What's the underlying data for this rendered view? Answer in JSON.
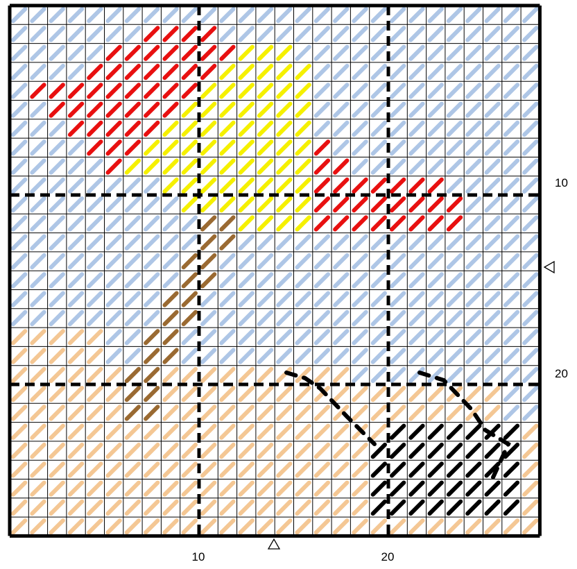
{
  "axis_labels": {
    "bottom": [
      "10",
      "20"
    ],
    "right": [
      "10",
      "20"
    ]
  }
}
